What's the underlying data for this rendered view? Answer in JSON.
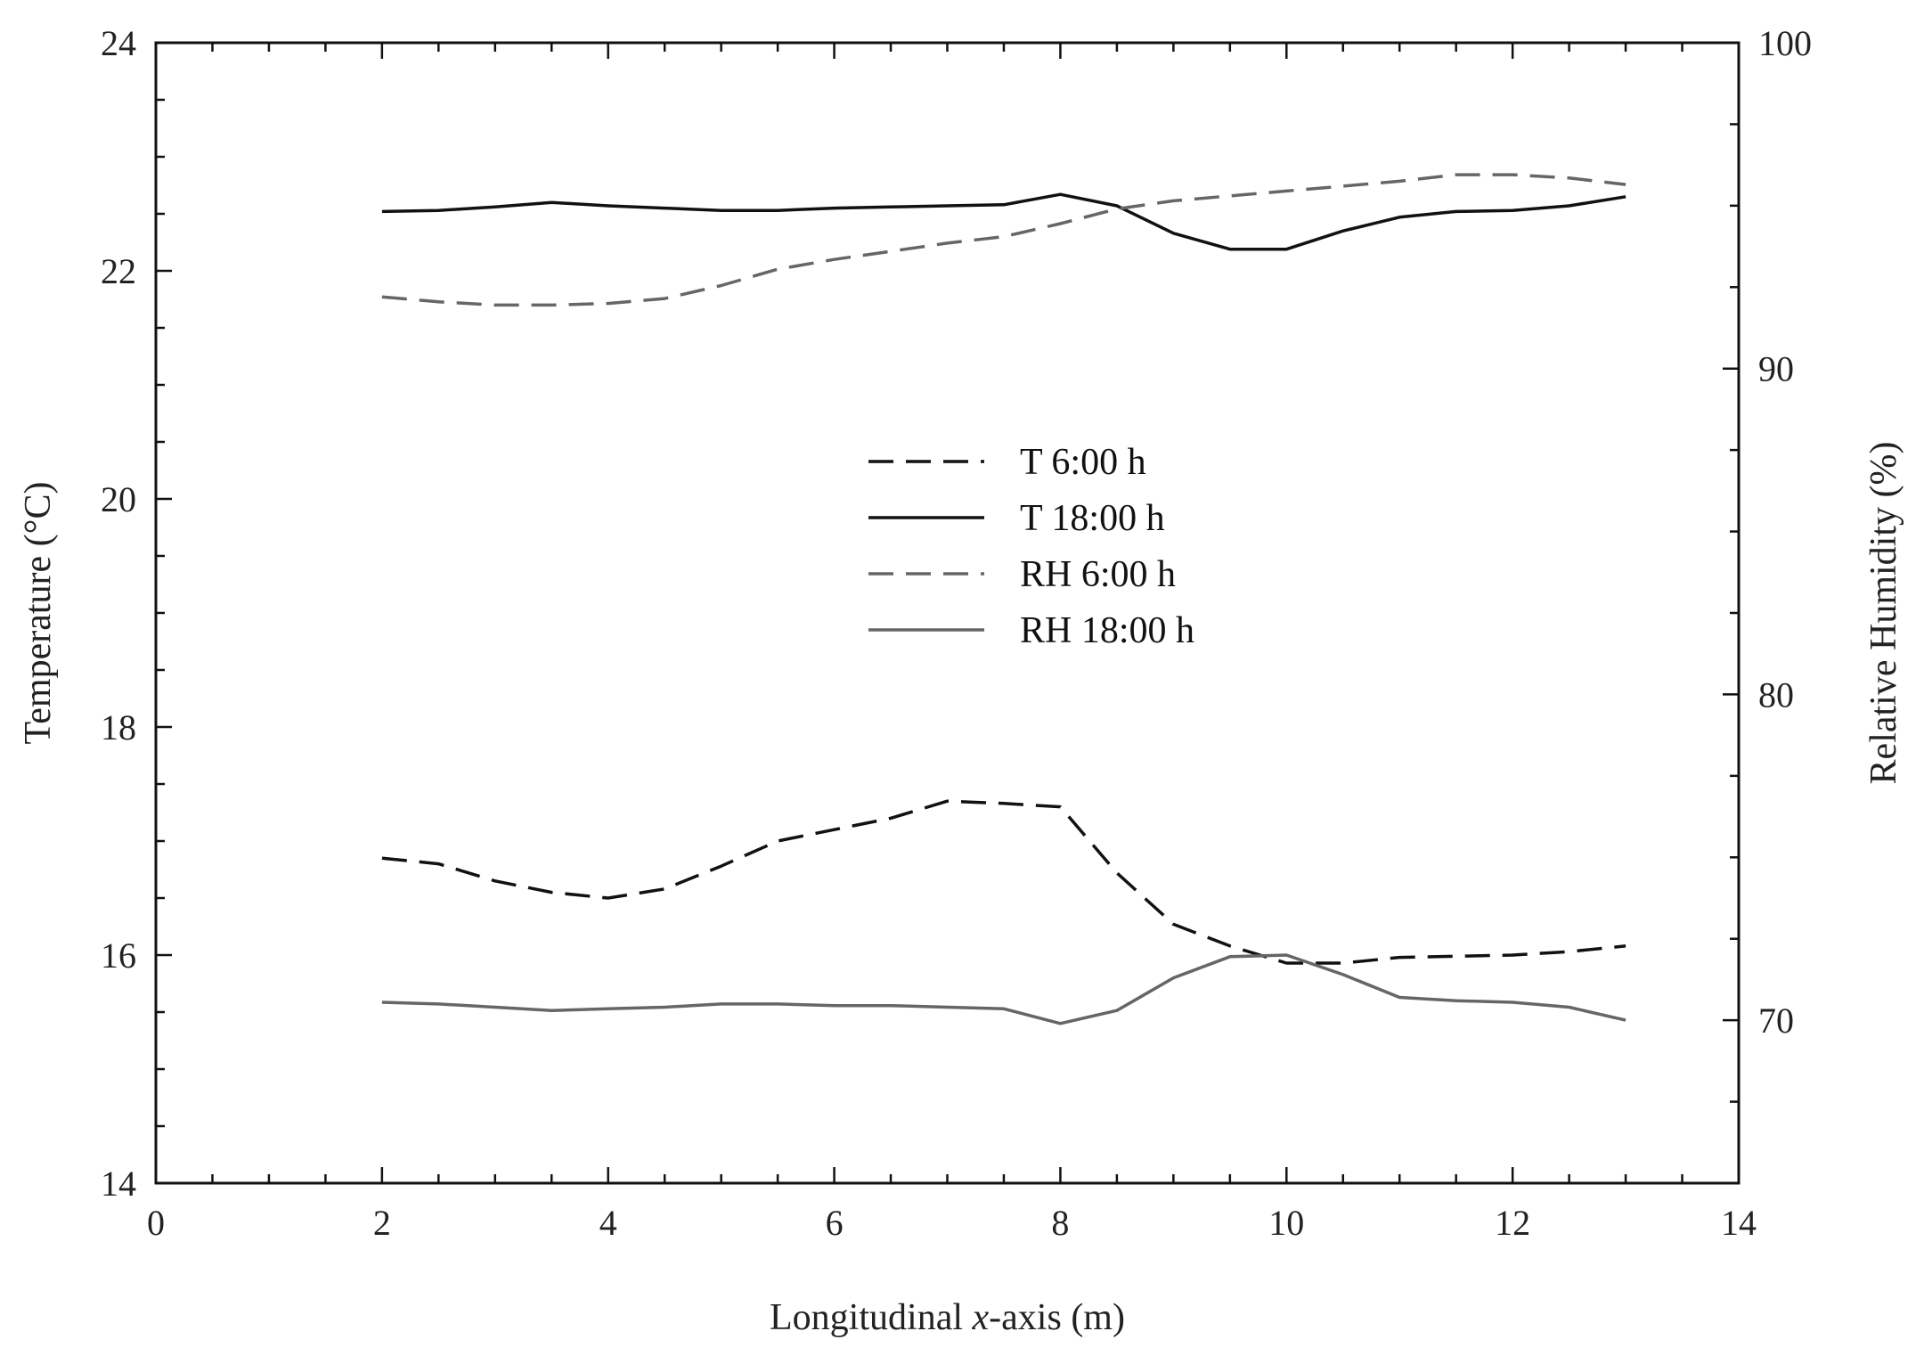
{
  "chart_data": {
    "type": "line",
    "title": "",
    "xlabel_prefix": "Longitudinal ",
    "xlabel_var": "x",
    "xlabel_suffix": "-axis (m)",
    "ylabel_left": "Temperature (°C)",
    "ylabel_right": "Relative Humidity (%)",
    "xlim": [
      0,
      14
    ],
    "ylim_left": [
      14,
      24
    ],
    "ylim_right": [
      65,
      100
    ],
    "x_ticks": [
      "0",
      "2",
      "4",
      "6",
      "8",
      "10",
      "12",
      "14"
    ],
    "x_tick_values": [
      0,
      2,
      4,
      6,
      8,
      10,
      12,
      14
    ],
    "y_left_ticks": [
      "14",
      "16",
      "18",
      "20",
      "22",
      "24"
    ],
    "y_left_tick_values": [
      14,
      16,
      18,
      20,
      22,
      24
    ],
    "y_right_ticks": [
      "70",
      "80",
      "90",
      "100"
    ],
    "y_right_tick_values": [
      70,
      80,
      90,
      100
    ],
    "grid": false,
    "legend_position": "center",
    "series": [
      {
        "name": "T 6:00 h",
        "axis": "left",
        "style": "dashed",
        "color": "#111111",
        "x": [
          2,
          2.5,
          3,
          3.5,
          4,
          4.5,
          5,
          5.5,
          6,
          6.5,
          7,
          7.5,
          8,
          8.5,
          9,
          9.5,
          10,
          10.5,
          11,
          11.5,
          12,
          12.5,
          13
        ],
        "values": [
          16.85,
          16.8,
          16.65,
          16.55,
          16.5,
          16.58,
          16.78,
          17.0,
          17.1,
          17.2,
          17.35,
          17.33,
          17.3,
          16.72,
          16.27,
          16.08,
          15.93,
          15.93,
          15.98,
          15.99,
          16.0,
          16.03,
          16.08
        ]
      },
      {
        "name": "T 18:00 h",
        "axis": "left",
        "style": "solid",
        "color": "#111111",
        "x": [
          2,
          2.5,
          3,
          3.5,
          4,
          4.5,
          5,
          5.5,
          6,
          6.5,
          7,
          7.5,
          8,
          8.5,
          9,
          9.5,
          10,
          10.5,
          11,
          11.5,
          12,
          12.5,
          13
        ],
        "values": [
          22.52,
          22.53,
          22.56,
          22.6,
          22.57,
          22.55,
          22.53,
          22.53,
          22.55,
          22.56,
          22.57,
          22.58,
          22.67,
          22.57,
          22.33,
          22.19,
          22.19,
          22.35,
          22.47,
          22.52,
          22.53,
          22.57,
          22.65
        ]
      },
      {
        "name": "RH 6:00 h",
        "axis": "right",
        "style": "dashed",
        "color": "#666666",
        "x": [
          2,
          2.5,
          3,
          3.5,
          4,
          4.5,
          5,
          5.5,
          6,
          6.5,
          7,
          7.5,
          8,
          8.5,
          9,
          9.5,
          10,
          10.5,
          11,
          11.5,
          12,
          12.5,
          13
        ],
        "values": [
          92.2,
          92.05,
          91.95,
          91.95,
          92.0,
          92.15,
          92.55,
          93.05,
          93.35,
          93.6,
          93.85,
          94.05,
          94.45,
          94.9,
          95.15,
          95.3,
          95.45,
          95.6,
          95.75,
          95.95,
          95.95,
          95.85,
          95.65
        ]
      },
      {
        "name": "RH 18:00 h",
        "axis": "right",
        "style": "solid",
        "color": "#666666",
        "x": [
          2,
          2.5,
          3,
          3.5,
          4,
          4.5,
          5,
          5.5,
          6,
          6.5,
          7,
          7.5,
          8,
          8.5,
          9,
          9.5,
          10,
          10.5,
          11,
          11.5,
          12,
          12.5,
          13
        ],
        "values": [
          70.55,
          70.5,
          70.4,
          70.3,
          70.35,
          70.4,
          70.5,
          70.5,
          70.45,
          70.45,
          70.4,
          70.35,
          69.9,
          70.3,
          71.3,
          71.95,
          72.0,
          71.4,
          70.7,
          70.6,
          70.55,
          70.4,
          70.0
        ]
      }
    ]
  }
}
